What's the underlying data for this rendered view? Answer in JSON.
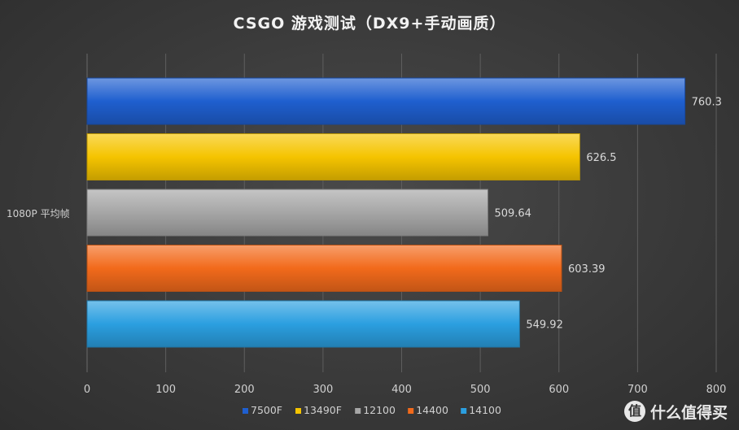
{
  "chart_data": {
    "type": "bar",
    "orientation": "horizontal",
    "title": "CSGO  游戏测试（DX9+手动画质）",
    "categories": [
      "1080P 平均帧"
    ],
    "series": [
      {
        "name": "7500F",
        "values": [
          760.3
        ],
        "color": "#1f5fcf"
      },
      {
        "name": "13490F",
        "values": [
          626.5
        ],
        "color": "#f5c400"
      },
      {
        "name": "12100",
        "values": [
          509.64
        ],
        "color": "#a6a6a6"
      },
      {
        "name": "14400",
        "values": [
          603.39
        ],
        "color": "#f26a1b"
      },
      {
        "name": "14100",
        "values": [
          549.92
        ],
        "color": "#2b9fe0"
      }
    ],
    "data_labels": [
      "760.3",
      "626.5",
      "509.64",
      "603.39",
      "549.92"
    ],
    "xlim": [
      0,
      800
    ],
    "xticks": [
      "0",
      "100",
      "200",
      "300",
      "400",
      "500",
      "600",
      "700",
      "800"
    ],
    "grid": true,
    "legend_position": "bottom"
  },
  "watermark": {
    "text": "什么值得买",
    "icon_glyph": "值"
  }
}
